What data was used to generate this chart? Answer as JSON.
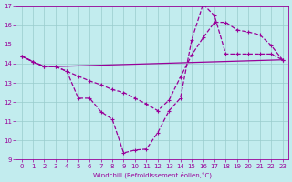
{
  "xlabel": "Windchill (Refroidissement éolien,°C)",
  "bg_color": "#c2ecee",
  "grid_color": "#99cccc",
  "line_color": "#990099",
  "xlim": [
    -0.5,
    23.5
  ],
  "ylim": [
    9,
    17
  ],
  "xticks": [
    0,
    1,
    2,
    3,
    4,
    5,
    6,
    7,
    8,
    9,
    10,
    11,
    12,
    13,
    14,
    15,
    16,
    17,
    18,
    19,
    20,
    21,
    22,
    23
  ],
  "yticks": [
    9,
    10,
    11,
    12,
    13,
    14,
    15,
    16,
    17
  ],
  "line_flat_x": [
    0,
    1,
    2,
    3,
    23
  ],
  "line_flat_y": [
    14.4,
    14.1,
    13.85,
    13.85,
    14.2
  ],
  "line_upper_x": [
    0,
    1,
    2,
    3,
    4,
    5,
    6,
    7,
    8,
    9,
    10,
    11,
    12,
    13,
    14,
    15,
    16,
    17,
    18,
    19,
    20,
    21,
    22,
    23
  ],
  "line_upper_y": [
    14.4,
    14.1,
    13.85,
    13.85,
    13.6,
    13.35,
    13.1,
    12.9,
    12.65,
    12.5,
    12.2,
    11.9,
    11.55,
    12.1,
    13.3,
    14.45,
    15.35,
    16.15,
    16.15,
    15.75,
    15.65,
    15.5,
    14.95,
    14.2
  ],
  "line_lower_x": [
    0,
    1,
    2,
    3,
    4,
    5,
    6,
    7,
    8,
    9,
    10,
    11,
    12,
    13,
    14,
    15,
    16,
    17,
    18,
    19,
    20,
    21,
    22,
    23
  ],
  "line_lower_y": [
    14.4,
    14.1,
    13.85,
    13.85,
    13.6,
    12.2,
    12.2,
    11.5,
    11.1,
    9.35,
    9.5,
    9.55,
    10.4,
    11.55,
    12.2,
    15.25,
    17.1,
    16.5,
    14.5,
    14.5,
    14.5,
    14.5,
    14.5,
    14.2
  ]
}
